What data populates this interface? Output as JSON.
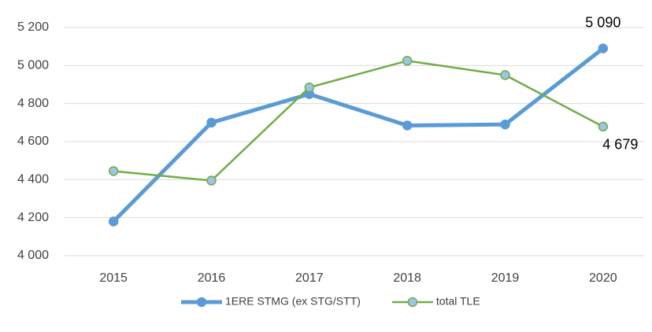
{
  "chart_data": {
    "type": "line",
    "categories": [
      "2015",
      "2016",
      "2017",
      "2018",
      "2019",
      "2020"
    ],
    "series": [
      {
        "name": "1ERE STMG (ex STG/STT)",
        "color": "#5b9bd5",
        "marker_fill": "#5b9bd5",
        "values": [
          4180,
          4700,
          4850,
          4685,
          4690,
          5090
        ],
        "value_labels": [
          null,
          null,
          null,
          null,
          null,
          "5 090"
        ]
      },
      {
        "name": "total TLE",
        "color": "#70ad47",
        "marker_fill": "#9dc3e6",
        "values": [
          4445,
          4395,
          4885,
          5025,
          4950,
          4679
        ],
        "value_labels": [
          null,
          null,
          null,
          null,
          null,
          "4 679"
        ]
      }
    ],
    "ylim": [
      4000,
      5200
    ],
    "yticks": [
      {
        "value": 4000,
        "label": "4 000"
      },
      {
        "value": 4200,
        "label": "4 200"
      },
      {
        "value": 4400,
        "label": "4 400"
      },
      {
        "value": 4600,
        "label": "4 600"
      },
      {
        "value": 4800,
        "label": "4 800"
      },
      {
        "value": 5000,
        "label": "5 000"
      },
      {
        "value": 5200,
        "label": "5 200"
      }
    ],
    "grid": true,
    "legend": "bottom"
  }
}
